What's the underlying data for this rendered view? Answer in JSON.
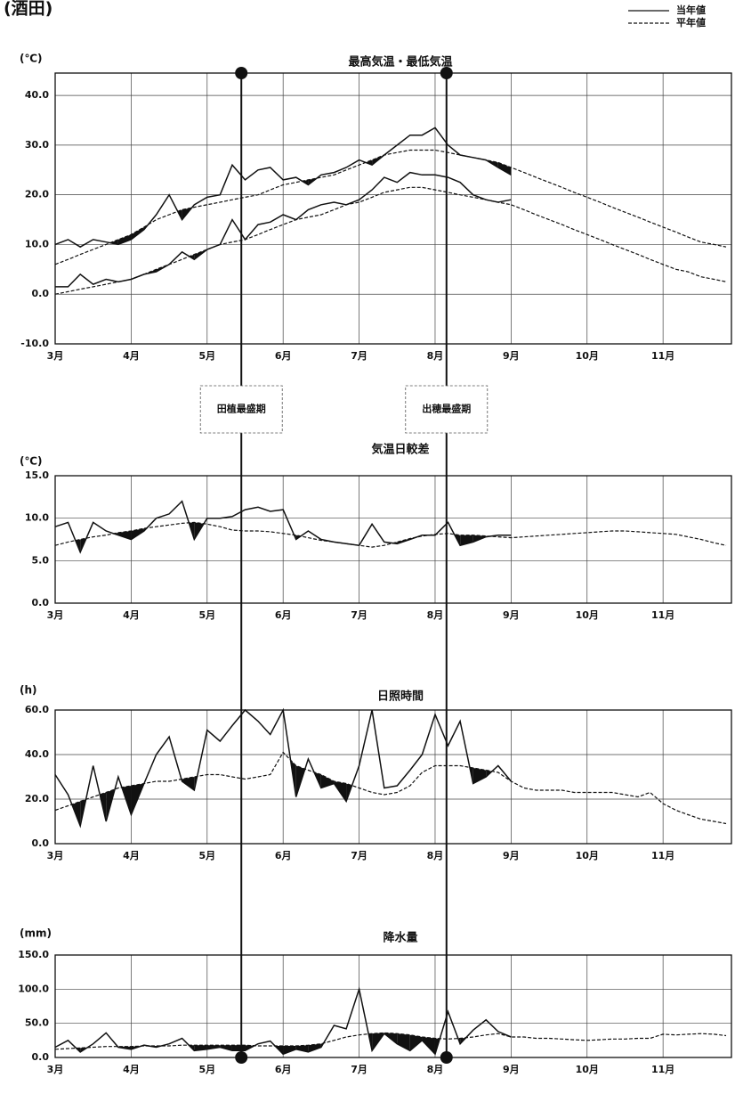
{
  "header": {
    "station": "(酒田)",
    "legend": [
      {
        "label": "当年値",
        "style": "solid"
      },
      {
        "label": "平年値",
        "style": "dashed"
      }
    ]
  },
  "markers": [
    {
      "label": "田植最盛期",
      "x": 5.45
    },
    {
      "label": "出穂最盛期",
      "x": 8.15
    }
  ],
  "chart_data": [
    {
      "type": "line",
      "title": "最高気温・最低気温",
      "y_label": "(℃)",
      "grid": true,
      "x": [
        3,
        3.17,
        3.33,
        3.5,
        3.67,
        3.83,
        4,
        4.17,
        4.33,
        4.5,
        4.67,
        4.83,
        5,
        5.17,
        5.33,
        5.5,
        5.67,
        5.83,
        6,
        6.17,
        6.33,
        6.5,
        6.67,
        6.83,
        7,
        7.17,
        7.33,
        7.5,
        7.67,
        7.83,
        8,
        8.17,
        8.33,
        8.5,
        8.67,
        8.83,
        9,
        9.17,
        9.33,
        9.5,
        9.67,
        9.83,
        10,
        10.17,
        10.33,
        10.5,
        10.67,
        10.83,
        11,
        11.17,
        11.33,
        11.5,
        11.67,
        11.83
      ],
      "xlim": [
        3,
        11.9
      ],
      "xticks": [
        {
          "value": 3,
          "label": "3月"
        },
        {
          "value": 4,
          "label": "4月"
        },
        {
          "value": 5,
          "label": "5月"
        },
        {
          "value": 6,
          "label": "6月"
        },
        {
          "value": 7,
          "label": "7月"
        },
        {
          "value": 8,
          "label": "8月"
        },
        {
          "value": 9,
          "label": "9月"
        },
        {
          "value": 10,
          "label": "10月"
        },
        {
          "value": 11,
          "label": "11月"
        }
      ],
      "ylim": [
        -10,
        44.5
      ],
      "yticks": [
        {
          "value": -10,
          "label": "-10.0"
        },
        {
          "value": 0,
          "label": "0.0"
        },
        {
          "value": 10,
          "label": "10.0"
        },
        {
          "value": 20,
          "label": "20.0"
        },
        {
          "value": 30,
          "label": "30.0"
        },
        {
          "value": 40,
          "label": "40.0"
        }
      ],
      "series": [
        {
          "style": "solid",
          "color": "#111",
          "values": [
            10,
            11,
            9.5,
            11,
            10.5,
            10,
            11,
            13,
            16,
            20,
            15,
            18,
            19.5,
            20,
            26,
            23,
            25,
            25.5,
            23,
            23.5,
            22,
            24,
            24.5,
            25.5,
            27,
            26,
            28,
            30,
            32,
            32,
            33.5,
            30,
            28,
            27.5,
            27,
            25.5,
            24,
            null,
            null,
            null,
            null,
            null,
            null,
            null,
            null,
            null,
            null,
            null,
            null,
            null,
            null,
            null,
            null,
            null
          ]
        },
        {
          "style": "dashed",
          "color": "#111",
          "values": [
            6,
            7,
            8,
            9,
            10,
            11,
            12,
            13.5,
            15,
            16,
            17,
            17.5,
            18,
            18.5,
            19,
            19.5,
            20,
            21,
            22,
            22.5,
            23,
            23.5,
            24,
            25,
            26,
            27,
            28,
            28.5,
            29,
            29,
            29,
            28.5,
            28,
            27.5,
            27,
            26.5,
            25.5,
            24.5,
            23.5,
            22.5,
            21.5,
            20.5,
            19.5,
            18.5,
            17.5,
            16.5,
            15.5,
            14.5,
            13.5,
            12.5,
            11.5,
            10.5,
            10,
            9.5
          ]
        },
        {
          "style": "solid",
          "color": "#111",
          "values": [
            1.5,
            1.5,
            4,
            2,
            3,
            2.5,
            3,
            4,
            4.5,
            6,
            8.5,
            7,
            9,
            10,
            15,
            11,
            14,
            14.5,
            16,
            15,
            17,
            18,
            18.5,
            18,
            19,
            21,
            23.5,
            22.5,
            24.5,
            24,
            24,
            23.5,
            22.5,
            20,
            19,
            18.5,
            19,
            null,
            null,
            null,
            null,
            null,
            null,
            null,
            null,
            null,
            null,
            null,
            null,
            null,
            null,
            null,
            null,
            null
          ]
        },
        {
          "style": "dashed",
          "color": "#111",
          "values": [
            0,
            0.5,
            1,
            1.5,
            2,
            2.5,
            3,
            4,
            5,
            6,
            7,
            8,
            9,
            10,
            10.5,
            11,
            12,
            13,
            14,
            15,
            15.5,
            16,
            17,
            18,
            18.5,
            19.5,
            20.5,
            21,
            21.5,
            21.5,
            21,
            20.5,
            20,
            19.5,
            19,
            18.5,
            18,
            17,
            16,
            15,
            14,
            13,
            12,
            11,
            10,
            9,
            8,
            7,
            6,
            5,
            4.5,
            3.5,
            3,
            2.5
          ]
        }
      ]
    },
    {
      "type": "line",
      "title": "気温日較差",
      "y_label": "(℃)",
      "grid": true,
      "x": [
        3,
        3.17,
        3.33,
        3.5,
        3.67,
        3.83,
        4,
        4.17,
        4.33,
        4.5,
        4.67,
        4.83,
        5,
        5.17,
        5.33,
        5.5,
        5.67,
        5.83,
        6,
        6.17,
        6.33,
        6.5,
        6.67,
        6.83,
        7,
        7.17,
        7.33,
        7.5,
        7.67,
        7.83,
        8,
        8.17,
        8.33,
        8.5,
        8.67,
        8.83,
        9,
        9.17,
        9.33,
        9.5,
        9.67,
        9.83,
        10,
        10.17,
        10.33,
        10.5,
        10.67,
        10.83,
        11,
        11.17,
        11.33,
        11.5,
        11.67,
        11.83
      ],
      "xlim": [
        3,
        11.9
      ],
      "xticks": [
        {
          "value": 3,
          "label": "3月"
        },
        {
          "value": 4,
          "label": "4月"
        },
        {
          "value": 5,
          "label": "5月"
        },
        {
          "value": 6,
          "label": "6月"
        },
        {
          "value": 7,
          "label": "7月"
        },
        {
          "value": 8,
          "label": "8月"
        },
        {
          "value": 9,
          "label": "9月"
        },
        {
          "value": 10,
          "label": "10月"
        },
        {
          "value": 11,
          "label": "11月"
        }
      ],
      "ylim": [
        0,
        15
      ],
      "yticks": [
        {
          "value": 0,
          "label": "0.0"
        },
        {
          "value": 5,
          "label": "5.0"
        },
        {
          "value": 10,
          "label": "10.0"
        },
        {
          "value": 15,
          "label": "15.0"
        }
      ],
      "series": [
        {
          "style": "solid",
          "color": "#111",
          "values": [
            9,
            9.5,
            6,
            9.5,
            8.5,
            8,
            7.5,
            8.5,
            10,
            10.5,
            12,
            7.5,
            10,
            10,
            10.2,
            11,
            11.3,
            10.8,
            11,
            7.5,
            8.5,
            7.5,
            7.2,
            7,
            6.8,
            9.3,
            7.2,
            7,
            7.5,
            8,
            8,
            9.5,
            6.8,
            7.2,
            7.8,
            8,
            8,
            null,
            null,
            null,
            null,
            null,
            null,
            null,
            null,
            null,
            null,
            null,
            null,
            null,
            null,
            null,
            null,
            null
          ]
        },
        {
          "style": "dashed",
          "color": "#111",
          "values": [
            6.8,
            7.2,
            7.5,
            7.8,
            8,
            8.3,
            8.5,
            8.8,
            9,
            9.2,
            9.4,
            9.5,
            9.3,
            9,
            8.6,
            8.5,
            8.5,
            8.4,
            8.2,
            8,
            7.7,
            7.4,
            7.2,
            7,
            6.8,
            6.6,
            6.8,
            7.2,
            7.6,
            7.9,
            8.1,
            8.2,
            8,
            8,
            7.9,
            7.8,
            7.7,
            7.8,
            7.9,
            8,
            8.1,
            8.2,
            8.3,
            8.4,
            8.5,
            8.5,
            8.4,
            8.3,
            8.2,
            8.1,
            7.8,
            7.5,
            7.1,
            6.8
          ]
        }
      ]
    },
    {
      "type": "line",
      "title": "日照時間",
      "y_label": "(h)",
      "grid": true,
      "x": [
        3,
        3.17,
        3.33,
        3.5,
        3.67,
        3.83,
        4,
        4.17,
        4.33,
        4.5,
        4.67,
        4.83,
        5,
        5.17,
        5.33,
        5.5,
        5.67,
        5.83,
        6,
        6.17,
        6.33,
        6.5,
        6.67,
        6.83,
        7,
        7.17,
        7.33,
        7.5,
        7.67,
        7.83,
        8,
        8.17,
        8.33,
        8.5,
        8.67,
        8.83,
        9,
        9.17,
        9.33,
        9.5,
        9.67,
        9.83,
        10,
        10.17,
        10.33,
        10.5,
        10.67,
        10.83,
        11,
        11.17,
        11.33,
        11.5,
        11.67,
        11.83
      ],
      "xlim": [
        3,
        11.9
      ],
      "xticks": [
        {
          "value": 3,
          "label": "3月"
        },
        {
          "value": 4,
          "label": "4月"
        },
        {
          "value": 5,
          "label": "5月"
        },
        {
          "value": 6,
          "label": "6月"
        },
        {
          "value": 7,
          "label": "7月"
        },
        {
          "value": 8,
          "label": "8月"
        },
        {
          "value": 9,
          "label": "9月"
        },
        {
          "value": 10,
          "label": "10月"
        },
        {
          "value": 11,
          "label": "11月"
        }
      ],
      "ylim": [
        0,
        60
      ],
      "yticks": [
        {
          "value": 0,
          "label": "0.0"
        },
        {
          "value": 20,
          "label": "20.0"
        },
        {
          "value": 40,
          "label": "40.0"
        },
        {
          "value": 60,
          "label": "60.0"
        }
      ],
      "series": [
        {
          "style": "solid",
          "color": "#111",
          "values": [
            31,
            22,
            8,
            35,
            10,
            30,
            13,
            27,
            40,
            48,
            28,
            24,
            51,
            46,
            53,
            60,
            55,
            49,
            60,
            21,
            38,
            25,
            27,
            19,
            35,
            60,
            25,
            26,
            33,
            40,
            58,
            44,
            55,
            27,
            30,
            35,
            28,
            null,
            null,
            null,
            null,
            null,
            null,
            null,
            null,
            null,
            null,
            null,
            null,
            null,
            null,
            null,
            null,
            null
          ]
        },
        {
          "style": "dashed",
          "color": "#111",
          "values": [
            15,
            17,
            19,
            21,
            23,
            25,
            26,
            27,
            28,
            28,
            29,
            30,
            31,
            31,
            30,
            29,
            30,
            31,
            41,
            35,
            33,
            31,
            28,
            27,
            25,
            23,
            22,
            23,
            26,
            32,
            35,
            35,
            35,
            34,
            33,
            32,
            28,
            25,
            24,
            24,
            24,
            23,
            23,
            23,
            23,
            22,
            21,
            23,
            18,
            15,
            13,
            11,
            10,
            9
          ]
        }
      ]
    },
    {
      "type": "line",
      "title": "降水量",
      "y_label": "(mm)",
      "grid": true,
      "x": [
        3,
        3.17,
        3.33,
        3.5,
        3.67,
        3.83,
        4,
        4.17,
        4.33,
        4.5,
        4.67,
        4.83,
        5,
        5.17,
        5.33,
        5.5,
        5.67,
        5.83,
        6,
        6.17,
        6.33,
        6.5,
        6.67,
        6.83,
        7,
        7.17,
        7.33,
        7.5,
        7.67,
        7.83,
        8,
        8.17,
        8.33,
        8.5,
        8.67,
        8.83,
        9,
        9.17,
        9.33,
        9.5,
        9.67,
        9.83,
        10,
        10.17,
        10.33,
        10.5,
        10.67,
        10.83,
        11,
        11.17,
        11.33,
        11.5,
        11.67,
        11.83
      ],
      "xlim": [
        3,
        11.9
      ],
      "xticks": [
        {
          "value": 3,
          "label": "3月"
        },
        {
          "value": 4,
          "label": "4月"
        },
        {
          "value": 5,
          "label": "5月"
        },
        {
          "value": 6,
          "label": "6月"
        },
        {
          "value": 7,
          "label": "7月"
        },
        {
          "value": 8,
          "label": "8月"
        },
        {
          "value": 9,
          "label": "9月"
        },
        {
          "value": 10,
          "label": "10月"
        },
        {
          "value": 11,
          "label": "11月"
        }
      ],
      "ylim": [
        0,
        150
      ],
      "yticks": [
        {
          "value": 0,
          "label": "0.0"
        },
        {
          "value": 50,
          "label": "50.0"
        },
        {
          "value": 100,
          "label": "100.0"
        },
        {
          "value": 150,
          "label": "150.0"
        }
      ],
      "series": [
        {
          "style": "solid",
          "color": "#111",
          "values": [
            15,
            25,
            8,
            20,
            36,
            15,
            12,
            18,
            15,
            20,
            28,
            10,
            12,
            15,
            10,
            10,
            20,
            24,
            5,
            12,
            8,
            15,
            47,
            42,
            100,
            10,
            35,
            20,
            10,
            25,
            5,
            67,
            20,
            40,
            55,
            38,
            30,
            null,
            null,
            null,
            null,
            null,
            null,
            null,
            null,
            null,
            null,
            null,
            null,
            null,
            null,
            null,
            null,
            null
          ]
        },
        {
          "style": "dashed",
          "color": "#111",
          "values": [
            12,
            13,
            14,
            15,
            16,
            16,
            16,
            17,
            17,
            17,
            18,
            18,
            18,
            18,
            18,
            18,
            17,
            17,
            17,
            17,
            18,
            20,
            25,
            30,
            33,
            35,
            36,
            35,
            33,
            30,
            28,
            27,
            28,
            30,
            33,
            35,
            30,
            30,
            28,
            28,
            27,
            26,
            25,
            26,
            27,
            27,
            28,
            28,
            34,
            33,
            34,
            35,
            34,
            32
          ]
        }
      ]
    }
  ]
}
